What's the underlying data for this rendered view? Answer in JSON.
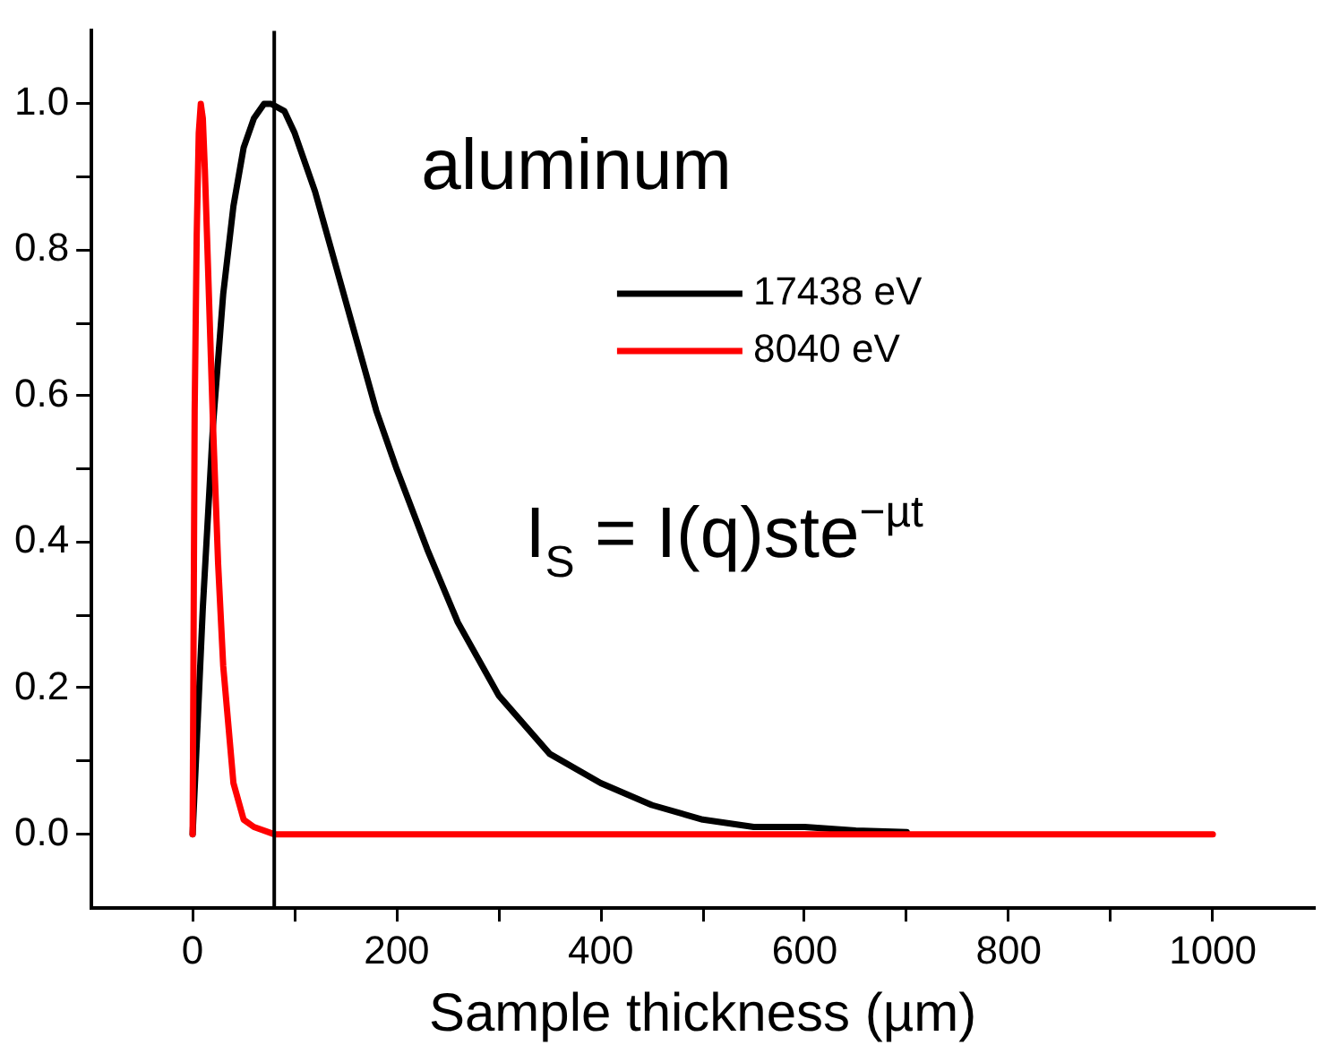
{
  "chart_data": {
    "type": "line",
    "xlabel": "Sample thickness (µm)",
    "xlim": [
      -100,
      1100
    ],
    "xticks": [
      0,
      {
        "value": 100,
        "label": null
      },
      200,
      {
        "value": 300,
        "label": null
      },
      400,
      {
        "value": 500,
        "label": null
      },
      600,
      {
        "value": 700,
        "label": null
      },
      800,
      {
        "value": 900,
        "label": null
      },
      1000
    ],
    "ylim": [
      -0.1,
      1.1
    ],
    "yticks": [
      {
        "value": 0,
        "label": "0.0"
      },
      {
        "value": 0.1,
        "label": null
      },
      {
        "value": 0.2,
        "label": "0.2"
      },
      {
        "value": 0.3,
        "label": null
      },
      {
        "value": 0.4,
        "label": "0.4"
      },
      {
        "value": 0.5,
        "label": null
      },
      {
        "value": 0.6,
        "label": "0.6"
      },
      {
        "value": 0.7,
        "label": null
      },
      {
        "value": 0.8,
        "label": "0.8"
      },
      {
        "value": 0.9,
        "label": null
      },
      {
        "value": 1.0,
        "label": "1.0"
      }
    ],
    "series": [
      {
        "name": "17438 eV",
        "color": "#000000",
        "x": [
          0,
          10,
          20,
          30,
          40,
          50,
          60,
          70,
          77,
          90,
          100,
          120,
          140,
          160,
          180,
          200,
          230,
          260,
          300,
          350,
          400,
          450,
          500,
          550,
          600,
          650,
          700
        ],
        "values": [
          0,
          0.31,
          0.56,
          0.74,
          0.86,
          0.94,
          0.98,
          1.0,
          1.0,
          0.99,
          0.96,
          0.88,
          0.78,
          0.68,
          0.58,
          0.5,
          0.39,
          0.29,
          0.19,
          0.11,
          0.07,
          0.04,
          0.02,
          0.01,
          0.01,
          0.005,
          0.003
        ]
      },
      {
        "name": "8040 eV",
        "color": "#ff0000",
        "x": [
          0,
          2,
          4,
          6,
          8,
          10,
          12,
          15,
          20,
          25,
          30,
          40,
          50,
          60,
          80,
          200,
          400,
          600,
          800,
          1000
        ],
        "values": [
          0,
          0.58,
          0.82,
          0.96,
          1.0,
          0.98,
          0.91,
          0.78,
          0.56,
          0.37,
          0.23,
          0.07,
          0.02,
          0.01,
          0,
          0,
          0,
          0,
          0,
          0
        ]
      }
    ],
    "ref_lines": [
      {
        "axis": "x",
        "value": 80,
        "color": "#000000"
      }
    ],
    "annotations": [
      "aluminum",
      "I$_{S}$ = I(q)ste$^{−µt}$"
    ],
    "legend": "top right",
    "grid": false,
    "marker": "none",
    "line_style": "solid"
  }
}
